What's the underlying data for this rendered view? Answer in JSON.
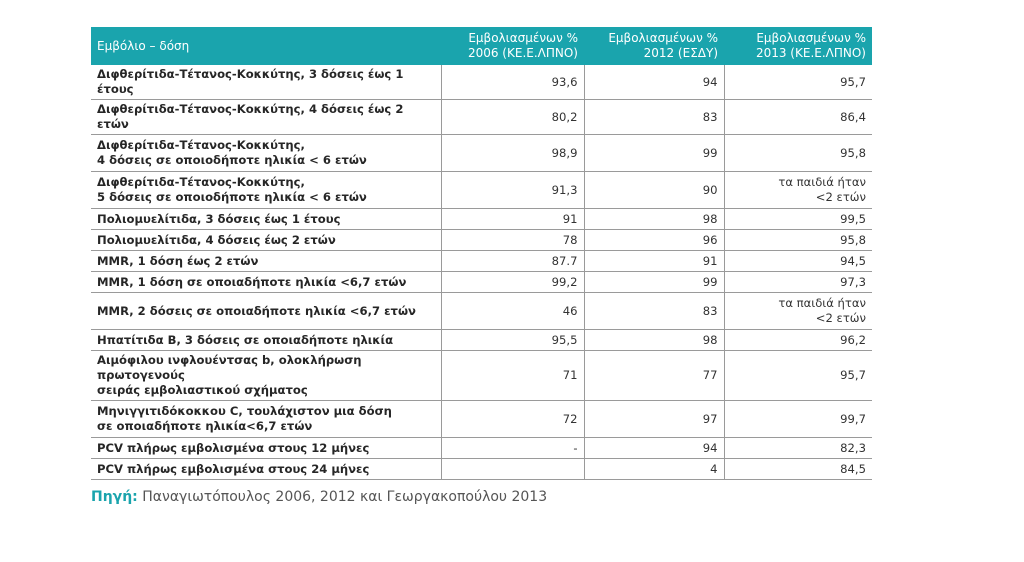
{
  "table": {
    "headers": [
      "Εμβόλιο – δόση",
      "Εμβολιασμένων %\n2006 (ΚΕ.Ε.ΛΠΝΟ)",
      "Εμβολιασμένων %\n2012 (ΕΣΔΥ)",
      "Εμβολιασμένων %\n2013 (ΚΕ.Ε.ΛΠΝΟ)"
    ],
    "rows": [
      {
        "label": "Διφθερίτιδα-Τέτανος-Κοκκύτης, 3 δόσεις έως 1 έτους",
        "v2006": "93,6",
        "v2012": "94",
        "v2013": "95,7"
      },
      {
        "label": "Διφθερίτιδα-Τέτανος-Κοκκύτης, 4 δόσεις έως 2 ετών",
        "v2006": "80,2",
        "v2012": "83",
        "v2013": "86,4"
      },
      {
        "label": "Διφθερίτιδα-Τέτανος-Κοκκύτης,\n4 δόσεις σε οποιοδήποτε ηλικία < 6 ετών",
        "v2006": "98,9",
        "v2012": "99",
        "v2013": "95,8"
      },
      {
        "label": "Διφθερίτιδα-Τέτανος-Κοκκύτης,\n5 δόσεις σε οποιοδήποτε ηλικία < 6 ετών",
        "v2006": "91,3",
        "v2012": "90",
        "v2013": "τα παιδιά ήταν\n<2 ετών"
      },
      {
        "label": "Πολιομυελίτιδα, 3 δόσεις έως 1 έτους",
        "v2006": "91",
        "v2012": "98",
        "v2013": "99,5"
      },
      {
        "label": "Πολιομυελίτιδα, 4 δόσεις έως 2 ετών",
        "v2006": "78",
        "v2012": "96",
        "v2013": "95,8"
      },
      {
        "label": "MMR, 1 δόση έως 2 ετών",
        "v2006": "87.7",
        "v2012": "91",
        "v2013": "94,5"
      },
      {
        "label": "MMR, 1 δόση σε οποιαδήποτε ηλικία <6,7 ετών",
        "v2006": "99,2",
        "v2012": "99",
        "v2013": "97,3"
      },
      {
        "label": "MMR, 2 δόσεις σε οποιαδήποτε ηλικία <6,7 ετών",
        "v2006": "46",
        "v2012": "83",
        "v2013": "τα παιδιά ήταν\n<2 ετών"
      },
      {
        "label": "Ηπατίτιδα B, 3 δόσεις σε οποιαδήποτε ηλικία",
        "v2006": "95,5",
        "v2012": "98",
        "v2013": "96,2"
      },
      {
        "label": "Αιμόφιλου ινφλουέντσας b, ολοκλήρωση πρωτογενούς\nσειράς εμβολιαστικού σχήματος",
        "v2006": "71",
        "v2012": "77",
        "v2013": "95,7"
      },
      {
        "label": "Μηνιγγιτιδόκοκκου C, τουλάχιστον μια δόση\nσε οποιαδήποτε ηλικία<6,7 ετών",
        "v2006": "72",
        "v2012": "97",
        "v2013": "99,7"
      },
      {
        "label": "PCV πλήρως εμβολισμένα στους 12 μήνες",
        "v2006": "-",
        "v2012": "94",
        "v2013": "82,3"
      },
      {
        "label": "PCV πλήρως εμβολισμένα στους 24 μήνες",
        "v2006": "",
        "v2012": "4",
        "v2013": "84,5"
      }
    ]
  },
  "source": {
    "label": "Πηγή:",
    "text": "Παναγιωτόπουλος 2006, 2012 και Γεωργακοπούλου 2013"
  },
  "colors": {
    "header_bg": "#1aa4ad",
    "accent": "#1aa4ad"
  }
}
